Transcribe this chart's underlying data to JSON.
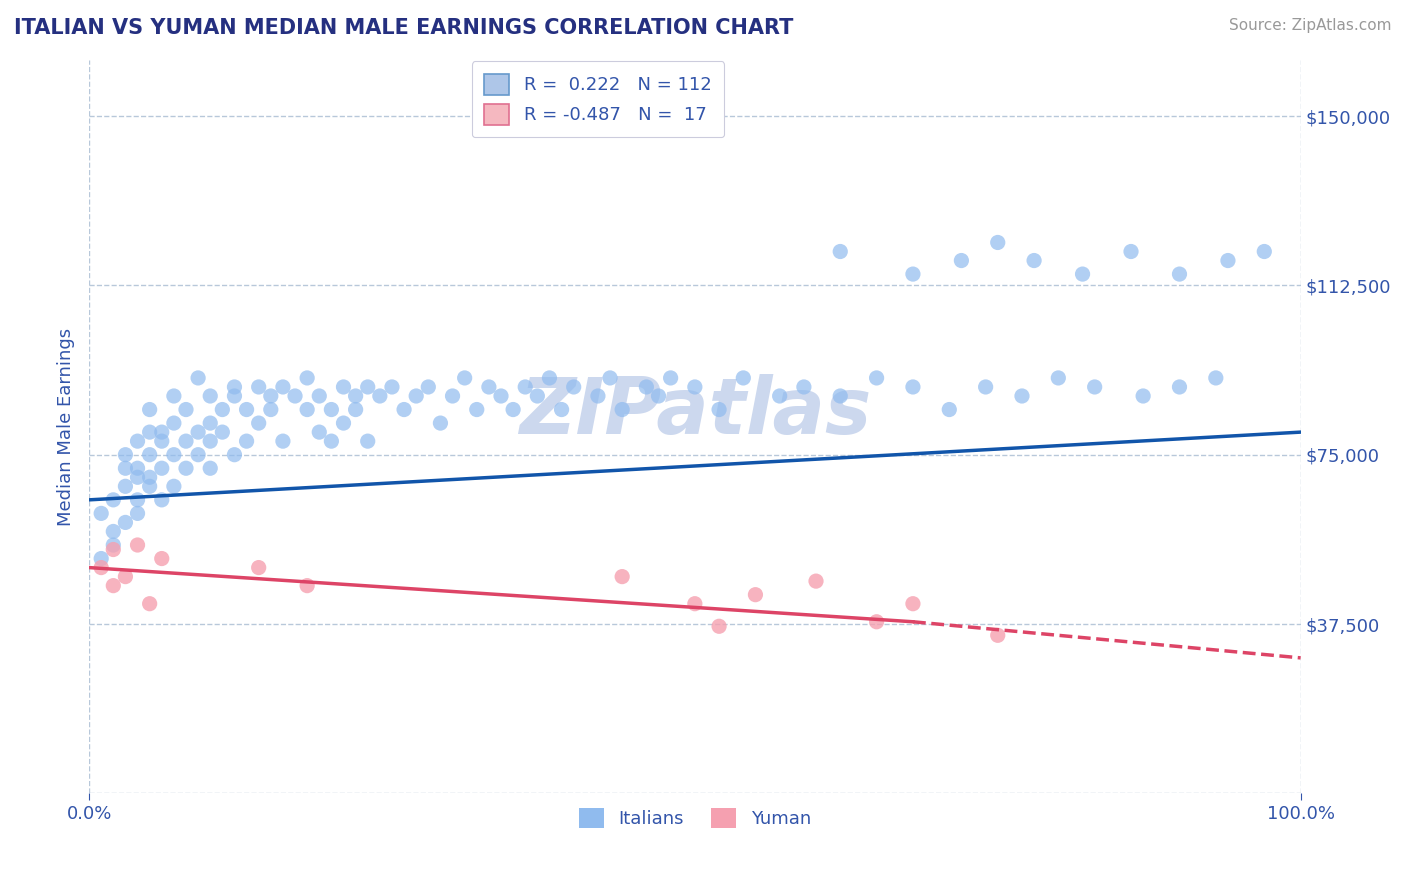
{
  "title": "ITALIAN VS YUMAN MEDIAN MALE EARNINGS CORRELATION CHART",
  "source_text": "Source: ZipAtlas.com",
  "ylabel": "Median Male Earnings",
  "watermark": "ZIPatlas",
  "xlim": [
    0.0,
    1.0
  ],
  "ylim": [
    0,
    162500
  ],
  "yticks": [
    0,
    37500,
    75000,
    112500,
    150000
  ],
  "xtick_labels": [
    "0.0%",
    "100.0%"
  ],
  "legend_items": [
    {
      "label_r": "R =  0.222",
      "label_n": "N = 112",
      "facecolor": "#aec6e8",
      "edgecolor": "#6699cc"
    },
    {
      "label_r": "R = -0.487",
      "label_n": "N =  17",
      "facecolor": "#f5b8c0",
      "edgecolor": "#e07090"
    }
  ],
  "italian_color": "#90bbee",
  "yuman_color": "#f5a0b0",
  "italian_line_color": "#1155aa",
  "yuman_line_color": "#dd4466",
  "background_color": "#ffffff",
  "grid_color": "#b8c8da",
  "title_color": "#253080",
  "axis_label_color": "#3355aa",
  "tick_label_color": "#3355aa",
  "source_color": "#999999",
  "watermark_color": "#ccd8ee",
  "it_line_x0": 0.0,
  "it_line_y0": 65000,
  "it_line_x1": 1.0,
  "it_line_y1": 80000,
  "yu_line_x0": 0.0,
  "yu_line_y0": 50000,
  "yu_line_solid_x1": 0.68,
  "yu_line_dash_x1": 1.0,
  "yu_line_y_at_solid": 38000,
  "yu_line_y_at_dash": 30000,
  "italians_x": [
    0.01,
    0.01,
    0.02,
    0.02,
    0.02,
    0.03,
    0.03,
    0.03,
    0.03,
    0.04,
    0.04,
    0.04,
    0.04,
    0.04,
    0.05,
    0.05,
    0.05,
    0.05,
    0.05,
    0.06,
    0.06,
    0.06,
    0.06,
    0.07,
    0.07,
    0.07,
    0.07,
    0.08,
    0.08,
    0.08,
    0.09,
    0.09,
    0.09,
    0.1,
    0.1,
    0.1,
    0.1,
    0.11,
    0.11,
    0.12,
    0.12,
    0.12,
    0.13,
    0.13,
    0.14,
    0.14,
    0.15,
    0.15,
    0.16,
    0.16,
    0.17,
    0.18,
    0.18,
    0.19,
    0.19,
    0.2,
    0.2,
    0.21,
    0.21,
    0.22,
    0.22,
    0.23,
    0.23,
    0.24,
    0.25,
    0.26,
    0.27,
    0.28,
    0.29,
    0.3,
    0.31,
    0.32,
    0.33,
    0.34,
    0.35,
    0.36,
    0.37,
    0.38,
    0.39,
    0.4,
    0.42,
    0.43,
    0.44,
    0.46,
    0.47,
    0.48,
    0.5,
    0.52,
    0.54,
    0.57,
    0.59,
    0.62,
    0.65,
    0.68,
    0.71,
    0.74,
    0.77,
    0.8,
    0.83,
    0.87,
    0.9,
    0.93,
    0.62,
    0.68,
    0.72,
    0.75,
    0.78,
    0.82,
    0.86,
    0.9,
    0.94,
    0.97
  ],
  "italians_y": [
    52000,
    62000,
    55000,
    65000,
    58000,
    68000,
    72000,
    60000,
    75000,
    70000,
    65000,
    78000,
    62000,
    72000,
    80000,
    68000,
    75000,
    70000,
    85000,
    72000,
    78000,
    65000,
    80000,
    75000,
    82000,
    68000,
    88000,
    78000,
    72000,
    85000,
    80000,
    75000,
    92000,
    82000,
    78000,
    88000,
    72000,
    85000,
    80000,
    90000,
    75000,
    88000,
    85000,
    78000,
    90000,
    82000,
    88000,
    85000,
    90000,
    78000,
    88000,
    85000,
    92000,
    80000,
    88000,
    85000,
    78000,
    90000,
    82000,
    88000,
    85000,
    90000,
    78000,
    88000,
    90000,
    85000,
    88000,
    90000,
    82000,
    88000,
    92000,
    85000,
    90000,
    88000,
    85000,
    90000,
    88000,
    92000,
    85000,
    90000,
    88000,
    92000,
    85000,
    90000,
    88000,
    92000,
    90000,
    85000,
    92000,
    88000,
    90000,
    88000,
    92000,
    90000,
    85000,
    90000,
    88000,
    92000,
    90000,
    88000,
    90000,
    92000,
    120000,
    115000,
    118000,
    122000,
    118000,
    115000,
    120000,
    115000,
    118000,
    120000
  ],
  "yuman_x": [
    0.01,
    0.02,
    0.02,
    0.03,
    0.04,
    0.05,
    0.06,
    0.14,
    0.18,
    0.44,
    0.5,
    0.52,
    0.55,
    0.6,
    0.65,
    0.68,
    0.75
  ],
  "yuman_y": [
    50000,
    54000,
    46000,
    48000,
    55000,
    42000,
    52000,
    50000,
    46000,
    48000,
    42000,
    37000,
    44000,
    47000,
    38000,
    42000,
    35000
  ]
}
